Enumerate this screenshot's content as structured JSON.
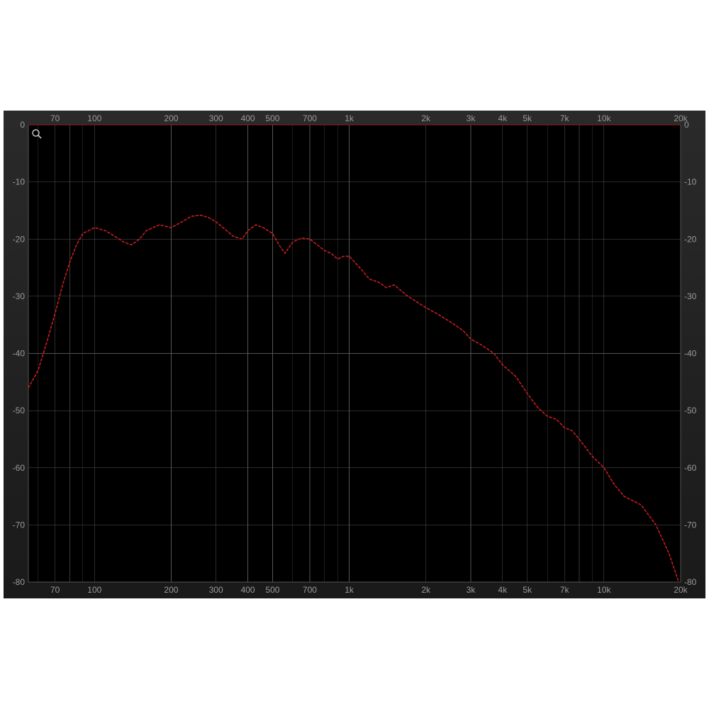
{
  "chart": {
    "type": "line",
    "background_gradient_top": "#2a2a2a",
    "background_gradient_bottom": "#1a1a1a",
    "plot_background": "#000000",
    "grid_color": "#555555",
    "grid_minor_color": "#3a3a3a",
    "axis_label_color": "#9a9a9a",
    "axis_label_fontsize": 12,
    "line_color": "#c81e1e",
    "line_dash": "3,3",
    "line_width": 1.6,
    "top_reference_line_color": "#8b1a1a",
    "x_scale": "log",
    "y_scale": "linear",
    "xlim_min": 55,
    "xlim_max": 20000,
    "ylim_min": -80,
    "ylim_max": 0,
    "x_major_ticks": [
      70,
      100,
      200,
      300,
      400,
      500,
      700,
      1000,
      2000,
      3000,
      4000,
      5000,
      7000,
      10000,
      20000
    ],
    "x_tick_labels": [
      "70",
      "100",
      "200",
      "300",
      "400",
      "500",
      "700",
      "1k",
      "2k",
      "3k",
      "4k",
      "5k",
      "7k",
      "10k",
      "20k"
    ],
    "x_minor_gridlines": [
      60,
      80,
      90,
      600,
      800,
      900,
      6000,
      8000,
      9000
    ],
    "y_ticks": [
      0,
      -10,
      -20,
      -30,
      -40,
      -50,
      -60,
      -70,
      -80
    ],
    "y_tick_labels": [
      "0",
      "-10",
      "-20",
      "-30",
      "-40",
      "-50",
      "-60",
      "-70",
      "-80"
    ],
    "data_x": [
      55,
      60,
      65,
      70,
      75,
      80,
      85,
      90,
      95,
      100,
      110,
      120,
      130,
      140,
      150,
      160,
      180,
      200,
      220,
      240,
      260,
      280,
      300,
      320,
      350,
      380,
      400,
      430,
      460,
      500,
      530,
      560,
      600,
      650,
      700,
      750,
      800,
      850,
      900,
      950,
      1000,
      1100,
      1200,
      1300,
      1400,
      1500,
      1700,
      2000,
      2200,
      2500,
      2800,
      3000,
      3300,
      3700,
      4000,
      4500,
      5000,
      5500,
      6000,
      6500,
      7000,
      7500,
      8000,
      9000,
      10000,
      11000,
      12000,
      14000,
      16000,
      18000,
      20000
    ],
    "data_y": [
      -46,
      -43,
      -38,
      -33,
      -28,
      -24,
      -21,
      -19,
      -18.5,
      -18,
      -18.5,
      -19.5,
      -20.5,
      -21,
      -20,
      -18.5,
      -17.5,
      -18,
      -17,
      -16,
      -15.8,
      -16.2,
      -17,
      -18,
      -19.5,
      -20,
      -18.5,
      -17.5,
      -18,
      -19,
      -21,
      -22.5,
      -20.5,
      -19.8,
      -20,
      -21,
      -22,
      -22.5,
      -23.5,
      -23,
      -23,
      -25,
      -27,
      -27.5,
      -28.5,
      -28,
      -30,
      -32,
      -33,
      -34.5,
      -36,
      -37.5,
      -38.5,
      -40,
      -42,
      -44,
      -47,
      -49.5,
      -51,
      -51.5,
      -53,
      -53.5,
      -55,
      -58,
      -60,
      -63,
      -65,
      -66.5,
      -70,
      -75,
      -81
    ]
  },
  "labels": {
    "zoom_icon_name": "zoom-icon"
  }
}
